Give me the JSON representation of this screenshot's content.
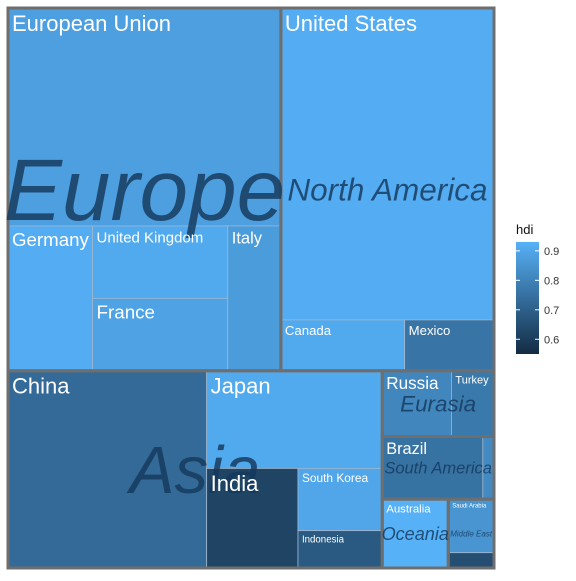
{
  "chart_data": {
    "type": "treemap",
    "size_variable": "",
    "fill_variable": "hdi",
    "legend": {
      "title": "hdi",
      "placement": "right",
      "ticks": [
        0.6,
        0.7,
        0.8,
        0.9
      ],
      "range": [
        0.55,
        0.93
      ],
      "color_low": "#132B43",
      "color_high": "#56B1F7"
    },
    "groups": [
      {
        "name": "Europe",
        "countries": [
          {
            "name": "European Union",
            "value": 17.0,
            "hdi": 0.88
          },
          {
            "name": "United Kingdom",
            "value": 2.8,
            "hdi": 0.91
          },
          {
            "name": "France",
            "value": 2.8,
            "hdi": 0.89
          },
          {
            "name": "Germany",
            "value": 3.5,
            "hdi": 0.92
          },
          {
            "name": "Italy",
            "value": 2.2,
            "hdi": 0.87
          }
        ]
      },
      {
        "name": "North America",
        "countries": [
          {
            "name": "United States",
            "value": 19.0,
            "hdi": 0.92
          },
          {
            "name": "Mexico",
            "value": 1.3,
            "hdi": 0.76
          },
          {
            "name": "Canada",
            "value": 1.8,
            "hdi": 0.91
          }
        ]
      },
      {
        "name": "Asia",
        "countries": [
          {
            "name": "China",
            "value": 11.2,
            "hdi": 0.73
          },
          {
            "name": "Japan",
            "value": 4.9,
            "hdi": 0.91
          },
          {
            "name": "India",
            "value": 2.6,
            "hdi": 0.62
          },
          {
            "name": "South Korea",
            "value": 1.5,
            "hdi": 0.9
          },
          {
            "name": "Indonesia",
            "value": 0.9,
            "hdi": 0.68
          }
        ]
      },
      {
        "name": "Eurasia",
        "countries": [
          {
            "name": "Russia",
            "value": 1.3,
            "hdi": 0.81
          },
          {
            "name": "Turkey",
            "value": 0.8,
            "hdi": 0.77
          }
        ]
      },
      {
        "name": "South America",
        "countries": [
          {
            "name": "Brazil",
            "value": 1.8,
            "hdi": 0.75
          },
          {
            "name": "",
            "value": 0.2,
            "hdi": 0.82
          }
        ]
      },
      {
        "name": "Middle East",
        "countries": [
          {
            "name": "Saudi Arabia",
            "value": 0.7,
            "hdi": 0.85
          },
          {
            "name": "",
            "value": 0.2,
            "hdi": 0.65
          }
        ]
      },
      {
        "name": "Oceania",
        "countries": [
          {
            "name": "Australia",
            "value": 1.3,
            "hdi": 0.94
          }
        ]
      }
    ]
  }
}
